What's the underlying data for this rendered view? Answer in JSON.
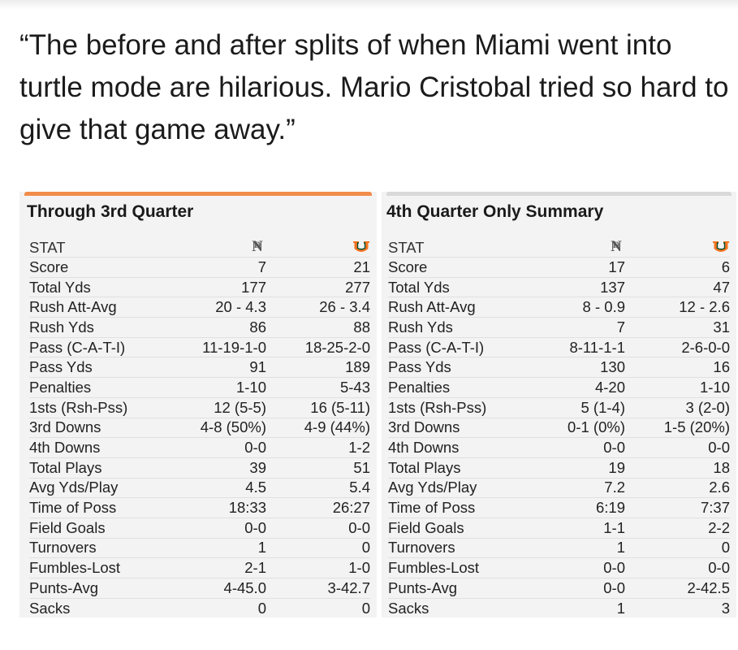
{
  "quote": "“The before and after splits of when Miami went into turtle mode are hilarious. Mario Cristobal tried so hard to give that game away.”",
  "colors": {
    "accent_orange": "#f28c4a",
    "miami_orange": "#f47321",
    "miami_green": "#005030",
    "nd_gray": "#555555"
  },
  "through3": {
    "title": "Through 3rd Quarter",
    "stat_header": "STAT",
    "team1_logo": "notre-dame-logo",
    "team2_logo": "miami-logo",
    "rows": [
      {
        "stat": "Score",
        "nd": "7",
        "mia": "21"
      },
      {
        "stat": "Total Yds",
        "nd": "177",
        "mia": "277"
      },
      {
        "stat": "Rush Att-Avg",
        "nd": "20 - 4.3",
        "mia": "26 - 3.4"
      },
      {
        "stat": "Rush Yds",
        "nd": "86",
        "mia": "88"
      },
      {
        "stat": "Pass (C-A-T-I)",
        "nd": "11-19-1-0",
        "mia": "18-25-2-0"
      },
      {
        "stat": "Pass Yds",
        "nd": "91",
        "mia": "189"
      },
      {
        "stat": "Penalties",
        "nd": "1-10",
        "mia": "5-43"
      },
      {
        "stat": "1sts (Rsh-Pss)",
        "nd": "12 (5-5)",
        "mia": "16 (5-11)"
      },
      {
        "stat": "3rd Downs",
        "nd": "4-8 (50%)",
        "mia": "4-9 (44%)"
      },
      {
        "stat": "4th Downs",
        "nd": "0-0",
        "mia": "1-2"
      },
      {
        "stat": "Total Plays",
        "nd": "39",
        "mia": "51"
      },
      {
        "stat": "Avg Yds/Play",
        "nd": "4.5",
        "mia": "5.4"
      },
      {
        "stat": "Time of Poss",
        "nd": "18:33",
        "mia": "26:27"
      },
      {
        "stat": "Field Goals",
        "nd": "0-0",
        "mia": "0-0"
      },
      {
        "stat": "Turnovers",
        "nd": "1",
        "mia": "0"
      },
      {
        "stat": "Fumbles-Lost",
        "nd": "2-1",
        "mia": "1-0"
      },
      {
        "stat": "Punts-Avg",
        "nd": "4-45.0",
        "mia": "3-42.7"
      },
      {
        "stat": "Sacks",
        "nd": "0",
        "mia": "0"
      }
    ]
  },
  "q4": {
    "title": "4th Quarter Only Summary",
    "stat_header": "STAT",
    "team1_logo": "notre-dame-logo",
    "team2_logo": "miami-logo",
    "rows": [
      {
        "stat": "Score",
        "nd": "17",
        "mia": "6"
      },
      {
        "stat": "Total Yds",
        "nd": "137",
        "mia": "47"
      },
      {
        "stat": "Rush Att-Avg",
        "nd": "8 - 0.9",
        "mia": "12 - 2.6"
      },
      {
        "stat": "Rush Yds",
        "nd": "7",
        "mia": "31"
      },
      {
        "stat": "Pass (C-A-T-I)",
        "nd": "8-11-1-1",
        "mia": "2-6-0-0"
      },
      {
        "stat": "Pass Yds",
        "nd": "130",
        "mia": "16"
      },
      {
        "stat": "Penalties",
        "nd": "4-20",
        "mia": "1-10"
      },
      {
        "stat": "1sts (Rsh-Pss)",
        "nd": "5 (1-4)",
        "mia": "3 (2-0)"
      },
      {
        "stat": "3rd Downs",
        "nd": "0-1 (0%)",
        "mia": "1-5 (20%)"
      },
      {
        "stat": "4th Downs",
        "nd": "0-0",
        "mia": "0-0"
      },
      {
        "stat": "Total Plays",
        "nd": "19",
        "mia": "18"
      },
      {
        "stat": "Avg Yds/Play",
        "nd": "7.2",
        "mia": "2.6"
      },
      {
        "stat": "Time of Poss",
        "nd": "6:19",
        "mia": "7:37"
      },
      {
        "stat": "Field Goals",
        "nd": "1-1",
        "mia": "2-2"
      },
      {
        "stat": "Turnovers",
        "nd": "1",
        "mia": "0"
      },
      {
        "stat": "Fumbles-Lost",
        "nd": "0-0",
        "mia": "0-0"
      },
      {
        "stat": "Punts-Avg",
        "nd": "0-0",
        "mia": "2-42.5"
      },
      {
        "stat": "Sacks",
        "nd": "1",
        "mia": "3"
      }
    ]
  }
}
